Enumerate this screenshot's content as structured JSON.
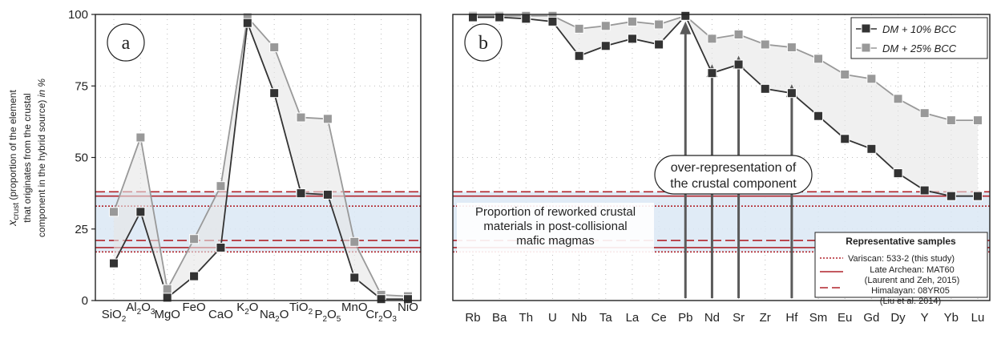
{
  "chart_data": [
    {
      "type": "line",
      "panel_label": "a",
      "ylabel_symbol": "x",
      "ylabel_subscript": "crust",
      "ylabel_line1": "(proportion of the element",
      "ylabel_line2": "that originates from the crustal",
      "ylabel_line3_plain": "component in the hybrid source)",
      "ylabel_line3_italic": "in %",
      "ylim": [
        0,
        100
      ],
      "yticks": [
        "0",
        "25",
        "50",
        "75",
        "100"
      ],
      "categories": [
        {
          "base": "SiO",
          "sub": "2"
        },
        {
          "base": "Al",
          "sub": "2",
          "base2": "O",
          "sub2": "3"
        },
        {
          "base": "MgO"
        },
        {
          "base": "FeO"
        },
        {
          "base": "CaO"
        },
        {
          "base": "K",
          "sub": "2",
          "base2": "O"
        },
        {
          "base": "Na",
          "sub": "2",
          "base2": "O"
        },
        {
          "base": "TiO",
          "sub": "2"
        },
        {
          "base": "P",
          "sub": "2",
          "base2": "O",
          "sub2": "5"
        },
        {
          "base": "MnO"
        },
        {
          "base": "Cr",
          "sub": "2",
          "base2": "O",
          "sub2": "3"
        },
        {
          "base": "NiO"
        }
      ],
      "series": [
        {
          "name": "DM + 10% BCC",
          "color": "#333333",
          "values": [
            13,
            31,
            1,
            8.5,
            18.5,
            97,
            72.5,
            37.5,
            37,
            8,
            0.5,
            0.5
          ]
        },
        {
          "name": "DM + 25% BCC",
          "color": "#999999",
          "values": [
            31,
            57,
            4,
            21.5,
            40,
            99,
            88.5,
            64,
            63.5,
            20.5,
            2,
            1.5
          ]
        }
      ]
    },
    {
      "type": "line",
      "panel_label": "b",
      "ylim": [
        0,
        100
      ],
      "categories": [
        "Rb",
        "Ba",
        "Th",
        "U",
        "Nb",
        "Ta",
        "La",
        "Ce",
        "Pb",
        "Nd",
        "Sr",
        "Zr",
        "Hf",
        "Sm",
        "Eu",
        "Gd",
        "Dy",
        "Y",
        "Yb",
        "Lu"
      ],
      "series": [
        {
          "name": "DM + 10% BCC",
          "color": "#333333",
          "values": [
            99,
            99,
            98.5,
            97.5,
            85.5,
            89,
            91.5,
            89.5,
            99.5,
            79.5,
            82.5,
            74,
            72.5,
            64.5,
            56.5,
            53,
            44.5,
            38.5,
            36.5,
            36.5
          ]
        },
        {
          "name": "DM + 25% BCC",
          "color": "#999999",
          "values": [
            99.5,
            99.5,
            99.5,
            99.5,
            95,
            96,
            97.5,
            96.5,
            99.5,
            91.5,
            93,
            89.5,
            88.5,
            84.5,
            79,
            77.5,
            70.5,
            65.5,
            63,
            63
          ]
        }
      ],
      "legend": [
        "DM + 10% BCC",
        "DM + 25% BCC"
      ],
      "legend_position": "top-right",
      "annotation_line1": "over-representation of",
      "annotation_line2": "the crustal component",
      "annotation_arrow_targets": [
        "Pb",
        "Nd",
        "Sr",
        "Hf"
      ]
    }
  ],
  "band": {
    "label_line1": "Proportion of reworked crustal",
    "label_line2": "materials in post-collisional",
    "label_line3": "mafic magmas",
    "fill_color": "#dbe7f4",
    "line_color": "#b1242b",
    "variscan": [
      17,
      33
    ],
    "late_archean": [
      18.5,
      36.5
    ],
    "himalayan": [
      21,
      38
    ]
  },
  "representative_samples": {
    "title": "Representative samples",
    "variscan": "Variscan: 533-2 (this study)",
    "late_archean_1": "Late Archean: MAT60",
    "late_archean_2": "(Laurent and Zeh, 2015)",
    "himalayan_1": "Himalayan: 08YR05",
    "himalayan_2": "(Liu et al. 2014)"
  }
}
